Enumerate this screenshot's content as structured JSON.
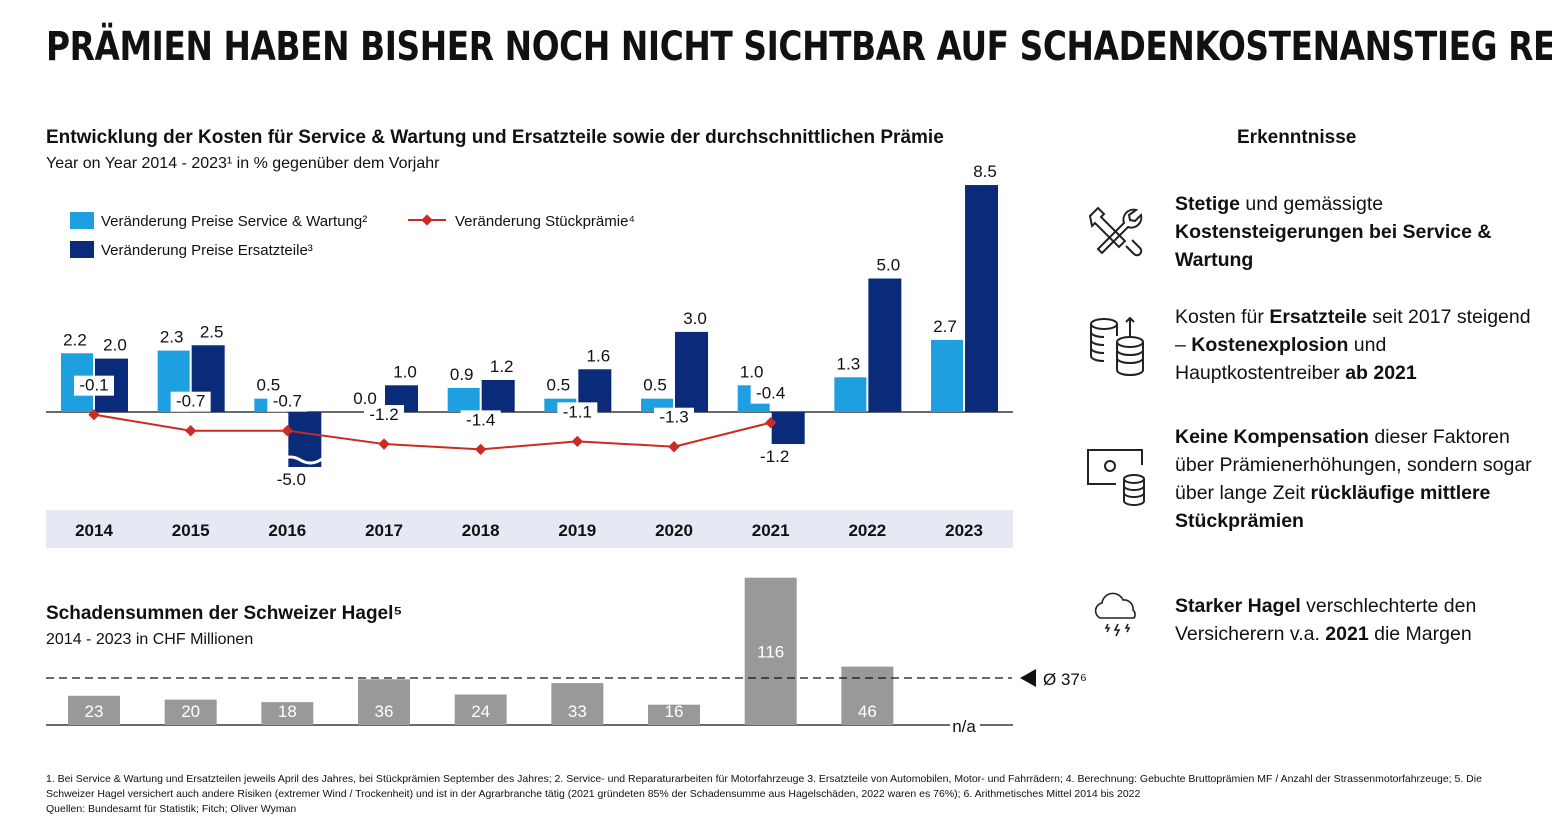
{
  "title": "PRÄMIEN HABEN BISHER NOCH NICHT SICHTBAR AUF SCHADENKOSTENANSTIEG REAGIERT",
  "colors": {
    "service": "#1ea0e0",
    "parts": "#0a2b7a",
    "premium": "#cc2a22",
    "hail": "#999999",
    "axis_band": "#e6e9f4"
  },
  "chart_data": [
    {
      "type": "bar",
      "title": "Entwicklung der Kosten für Service & Wartung und Ersatzteile sowie der durchschnittlichen Prämie",
      "subtitle": "Year on Year 2014 - 2023¹ in % gegenüber dem Vorjahr",
      "categories": [
        "2014",
        "2015",
        "2016",
        "2017",
        "2018",
        "2019",
        "2020",
        "2021",
        "2022",
        "2023"
      ],
      "series": [
        {
          "name": "Veränderung Preise Service & Wartung²",
          "type": "bar",
          "values": [
            2.2,
            2.3,
            0.5,
            0.0,
            0.9,
            0.5,
            0.5,
            1.0,
            1.3,
            2.7
          ]
        },
        {
          "name": "Veränderung Preise Ersatzteile³",
          "type": "bar",
          "values": [
            2.0,
            2.5,
            -5.0,
            1.0,
            1.2,
            1.6,
            3.0,
            -1.2,
            5.0,
            8.5
          ]
        },
        {
          "name": "Veränderung Stückprämie⁴",
          "type": "line",
          "values": [
            -0.1,
            -0.7,
            -0.7,
            -1.2,
            -1.4,
            -1.1,
            -1.3,
            -0.4,
            null,
            null
          ]
        }
      ],
      "axis_break": "2016 Ersatzteile bar truncated",
      "legend": "top-left"
    },
    {
      "type": "bar",
      "title": "Schadensummen der Schweizer Hagel⁵",
      "subtitle": "2014 - 2023 in CHF Millionen",
      "categories": [
        "2014",
        "2015",
        "2016",
        "2017",
        "2018",
        "2019",
        "2020",
        "2021",
        "2022",
        "2023"
      ],
      "values": [
        23,
        20,
        18,
        36,
        24,
        33,
        16,
        116,
        46,
        null
      ],
      "missing_label": "n/a",
      "average": 37,
      "average_label": "Ø 37⁶"
    }
  ],
  "insights": {
    "heading": "Erkenntnisse",
    "items": [
      {
        "icon": "tools-icon",
        "parts": [
          {
            "t": "Stetige",
            "b": true
          },
          {
            "t": " und gemässigte ",
            "b": false
          },
          {
            "t": "Kostensteigerungen bei Service & Wartung",
            "b": true
          }
        ]
      },
      {
        "icon": "coins-up-icon",
        "parts": [
          {
            "t": "Kosten für ",
            "b": false
          },
          {
            "t": "Ersatzteile",
            "b": true
          },
          {
            "t": " seit 2017 steigend – ",
            "b": false
          },
          {
            "t": "Kostenexplosion",
            "b": true
          },
          {
            "t": " und Hauptkostentreiber ",
            "b": false
          },
          {
            "t": "ab 2021",
            "b": true
          }
        ]
      },
      {
        "icon": "screen-database-icon",
        "parts": [
          {
            "t": "Keine Kompensation",
            "b": true
          },
          {
            "t": " dieser Faktoren über Prämienerhöhungen, sondern sogar über lange Zeit ",
            "b": false
          },
          {
            "t": "rückläufige mittlere Stückprämien",
            "b": true
          }
        ]
      },
      {
        "icon": "hail-cloud-icon",
        "parts": [
          {
            "t": "Starker Hagel",
            "b": true
          },
          {
            "t": " verschlechterte den Versicherern v.a. ",
            "b": false
          },
          {
            "t": "2021",
            "b": true
          },
          {
            "t": " die Margen",
            "b": false
          }
        ]
      }
    ]
  },
  "footnotes": [
    "1. Bei Service & Wartung und Ersatzteilen jeweils April des Jahres, bei Stückprämien September des Jahres; 2. Service- und Reparaturarbeiten für Motorfahrzeuge 3. Ersatzteile von Automobilen, Motor- und Fahrrädern; 4. Berechnung: Gebuchte Bruttoprämien MF / Anzahl der Strassenmotorfahrzeuge; 5. Die Schweizer Hagel versichert auch andere Risiken (extremer Wind / Trockenheit) und ist in der Agrarbranche tätig (2021 gründeten 85% der Schadensumme aus Hagelschäden, 2022 waren es 76%); 6. Arithmetisches Mittel 2014 bis 2022",
    "Quellen: Bundesamt für Statistik; Fitch; Oliver Wyman"
  ]
}
